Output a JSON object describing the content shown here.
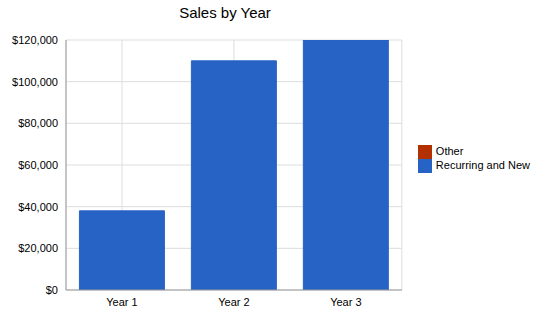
{
  "chart_data": {
    "type": "bar",
    "title": "Sales by Year",
    "categories": [
      "Year 1",
      "Year 2",
      "Year 3"
    ],
    "series": [
      {
        "name": "Recurring and New",
        "color": "#2763c4",
        "values": [
          38000,
          110000,
          120000
        ]
      },
      {
        "name": "Other",
        "color": "#b33000",
        "values": [
          0,
          0,
          0
        ]
      }
    ],
    "stacked": true,
    "ylim": [
      0,
      120000
    ],
    "yticks": [
      {
        "value": 0,
        "label": "$0"
      },
      {
        "value": 20000,
        "label": "$20,000"
      },
      {
        "value": 40000,
        "label": "$40,000"
      },
      {
        "value": 60000,
        "label": "$60,000"
      },
      {
        "value": 80000,
        "label": "$80,000"
      },
      {
        "value": 100000,
        "label": "$100,000"
      },
      {
        "value": 120000,
        "label": "$120,000"
      }
    ],
    "grid": true,
    "legend": "right"
  }
}
